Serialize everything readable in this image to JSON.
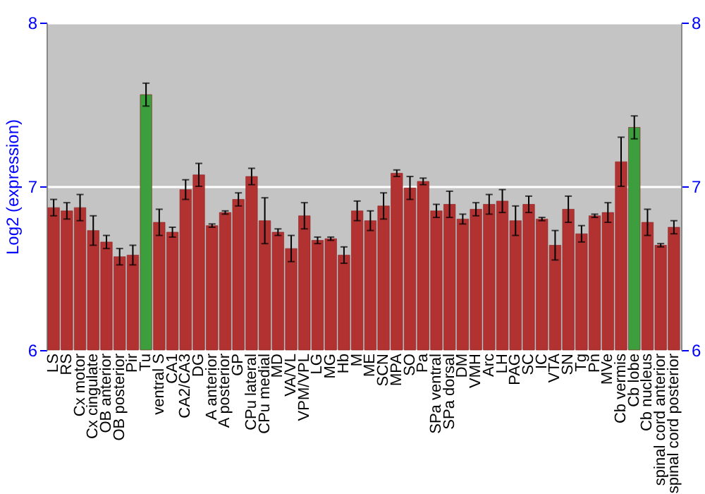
{
  "chart_data": {
    "type": "bar",
    "ylabel": "Log2 (expression)",
    "categories": [
      "LS",
      "RS",
      "Cx motor",
      "Cx cingulate",
      "OB anterior",
      "OB posterior",
      "Pir",
      "Tu",
      "ventral S",
      "CA1",
      "CA2/CA3",
      "DG",
      "A anterior",
      "A posterior",
      "GP",
      "CPu lateral",
      "CPu medial",
      "MD",
      "VA/VL",
      "VPM/VPL",
      "LG",
      "MG",
      "Hb",
      "M",
      "ME",
      "SCN",
      "MPA",
      "SO",
      "Pa",
      "SPa ventral",
      "SPa dorsal",
      "DM",
      "VMH",
      "Arc",
      "LH",
      "PAG",
      "SC",
      "IC",
      "VTA",
      "SN",
      "Tg",
      "Pn",
      "MVe",
      "Cb vermis",
      "Cb lobe",
      "Cb nucleus",
      "spinal cord anterior",
      "spinal cord posterior"
    ],
    "values": [
      6.87,
      6.85,
      6.87,
      6.73,
      6.66,
      6.57,
      6.58,
      7.56,
      6.78,
      6.72,
      6.98,
      7.07,
      6.76,
      6.84,
      6.92,
      7.06,
      6.79,
      6.72,
      6.62,
      6.82,
      6.67,
      6.68,
      6.58,
      6.85,
      6.79,
      6.88,
      7.08,
      6.99,
      7.03,
      6.85,
      6.89,
      6.8,
      6.86,
      6.89,
      6.91,
      6.79,
      6.89,
      6.8,
      6.64,
      6.86,
      6.71,
      6.82,
      6.84,
      7.15,
      7.36,
      6.78,
      6.64,
      6.75
    ],
    "errors": [
      0.05,
      0.05,
      0.08,
      0.09,
      0.04,
      0.05,
      0.06,
      0.07,
      0.08,
      0.03,
      0.06,
      0.07,
      0.01,
      0.01,
      0.04,
      0.05,
      0.14,
      0.02,
      0.08,
      0.08,
      0.02,
      0.01,
      0.05,
      0.06,
      0.06,
      0.08,
      0.02,
      0.07,
      0.02,
      0.04,
      0.08,
      0.03,
      0.04,
      0.06,
      0.07,
      0.09,
      0.05,
      0.01,
      0.09,
      0.08,
      0.05,
      0.01,
      0.06,
      0.15,
      0.07,
      0.08,
      0.01,
      0.04
    ],
    "colors": [
      "#b23232",
      "#b23232",
      "#b23232",
      "#b23232",
      "#b23232",
      "#b23232",
      "#b23232",
      "#3c9e3c",
      "#b23232",
      "#b23232",
      "#b23232",
      "#b23232",
      "#b23232",
      "#b23232",
      "#b23232",
      "#b23232",
      "#b23232",
      "#b23232",
      "#b23232",
      "#b23232",
      "#b23232",
      "#b23232",
      "#b23232",
      "#b23232",
      "#b23232",
      "#b23232",
      "#b23232",
      "#b23232",
      "#b23232",
      "#b23232",
      "#b23232",
      "#b23232",
      "#b23232",
      "#b23232",
      "#b23232",
      "#b23232",
      "#b23232",
      "#b23232",
      "#b23232",
      "#b23232",
      "#b23232",
      "#b23232",
      "#b23232",
      "#b23232",
      "#3c9e3c",
      "#b23232",
      "#b23232",
      "#b23232"
    ],
    "ylim": [
      6,
      8
    ],
    "yticks": [
      6,
      7,
      8
    ],
    "y2lim": [
      6,
      8
    ],
    "y2ticks": [
      6,
      7,
      8
    ],
    "grid": "y"
  }
}
